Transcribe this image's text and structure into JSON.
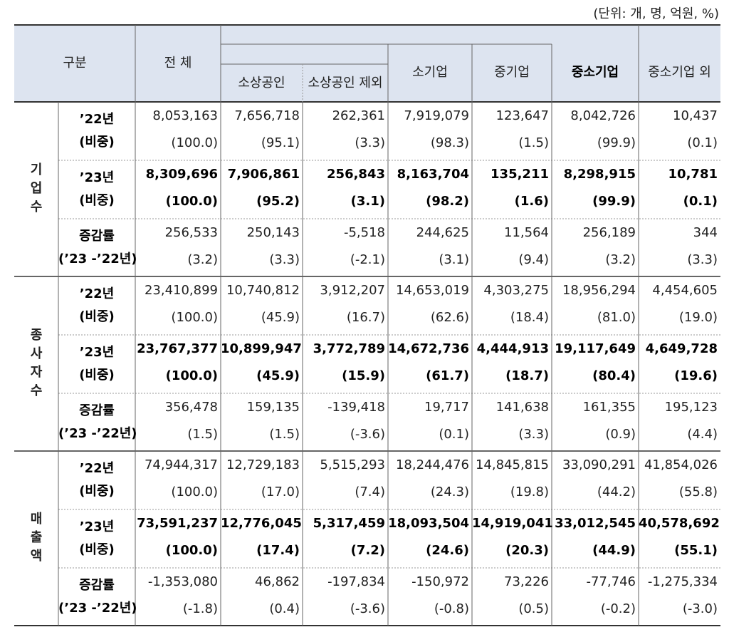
{
  "unit_note": "(단위: 개, 명, 억원, %)",
  "header": {
    "category": "구분",
    "total": "전 체",
    "columns": [
      "소상공인",
      "소상공인 제외",
      "소기업",
      "중기업",
      "중소기업",
      "중소기업 외"
    ]
  },
  "groups": [
    {
      "label": "기업수",
      "rows": [
        {
          "label": [
            "’22년",
            "(비중)"
          ],
          "values": [
            "8,053,163",
            "7,656,718",
            "262,361",
            "7,919,079",
            "123,647",
            "8,042,726",
            "10,437"
          ],
          "shares": [
            "(100.0)",
            "(95.1)",
            "(3.3)",
            "(98.3)",
            "(1.5)",
            "(99.9)",
            "(0.1)"
          ]
        },
        {
          "label": [
            "’23년",
            "(비중)"
          ],
          "values": [
            "8,309,696",
            "7,906,861",
            "256,843",
            "8,163,704",
            "135,211",
            "8,298,915",
            "10,781"
          ],
          "shares": [
            "(100.0)",
            "(95.2)",
            "(3.1)",
            "(98.2)",
            "(1.6)",
            "(99.9)",
            "(0.1)"
          ]
        },
        {
          "label": [
            "증감률",
            "(’23 -’22년)"
          ],
          "values": [
            "256,533",
            "250,143",
            "-5,518",
            "244,625",
            "11,564",
            "256,189",
            "344"
          ],
          "shares": [
            "(3.2)",
            "(3.3)",
            "(-2.1)",
            "(3.1)",
            "(9.4)",
            "(3.2)",
            "(3.3)"
          ]
        }
      ]
    },
    {
      "label": "종사자수",
      "rows": [
        {
          "label": [
            "’22년",
            "(비중)"
          ],
          "values": [
            "23,410,899",
            "10,740,812",
            "3,912,207",
            "14,653,019",
            "4,303,275",
            "18,956,294",
            "4,454,605"
          ],
          "shares": [
            "(100.0)",
            "(45.9)",
            "(16.7)",
            "(62.6)",
            "(18.4)",
            "(81.0)",
            "(19.0)"
          ]
        },
        {
          "label": [
            "’23년",
            "(비중)"
          ],
          "values": [
            "23,767,377",
            "10,899,947",
            "3,772,789",
            "14,672,736",
            "4,444,913",
            "19,117,649",
            "4,649,728"
          ],
          "shares": [
            "(100.0)",
            "(45.9)",
            "(15.9)",
            "(61.7)",
            "(18.7)",
            "(80.4)",
            "(19.6)"
          ]
        },
        {
          "label": [
            "증감률",
            "(’23 -’22년)"
          ],
          "values": [
            "356,478",
            "159,135",
            "-139,418",
            "19,717",
            "141,638",
            "161,355",
            "195,123"
          ],
          "shares": [
            "(1.5)",
            "(1.5)",
            "(-3.6)",
            "(0.1)",
            "(3.3)",
            "(0.9)",
            "(4.4)"
          ]
        }
      ]
    },
    {
      "label": "매출액",
      "rows": [
        {
          "label": [
            "’22년",
            "(비중)"
          ],
          "values": [
            "74,944,317",
            "12,729,183",
            "5,515,293",
            "18,244,476",
            "14,845,815",
            "33,090,291",
            "41,854,026"
          ],
          "shares": [
            "(100.0)",
            "(17.0)",
            "(7.4)",
            "(24.3)",
            "(19.8)",
            "(44.2)",
            "(55.8)"
          ]
        },
        {
          "label": [
            "’23년",
            "(비중)"
          ],
          "values": [
            "73,591,237",
            "12,776,045",
            "5,317,459",
            "18,093,504",
            "14,919,041",
            "33,012,545",
            "40,578,692"
          ],
          "shares": [
            "(100.0)",
            "(17.4)",
            "(7.2)",
            "(24.6)",
            "(20.3)",
            "(44.9)",
            "(55.1)"
          ]
        },
        {
          "label": [
            "증감률",
            "(’23 -’22년)"
          ],
          "values": [
            "-1,353,080",
            "46,862",
            "-197,834",
            "-150,972",
            "73,226",
            "-77,746",
            "-1,275,334"
          ],
          "shares": [
            "(-1.8)",
            "(0.4)",
            "(-3.6)",
            "(-0.8)",
            "(0.5)",
            "(-0.2)",
            "(-3.0)"
          ]
        }
      ]
    }
  ]
}
